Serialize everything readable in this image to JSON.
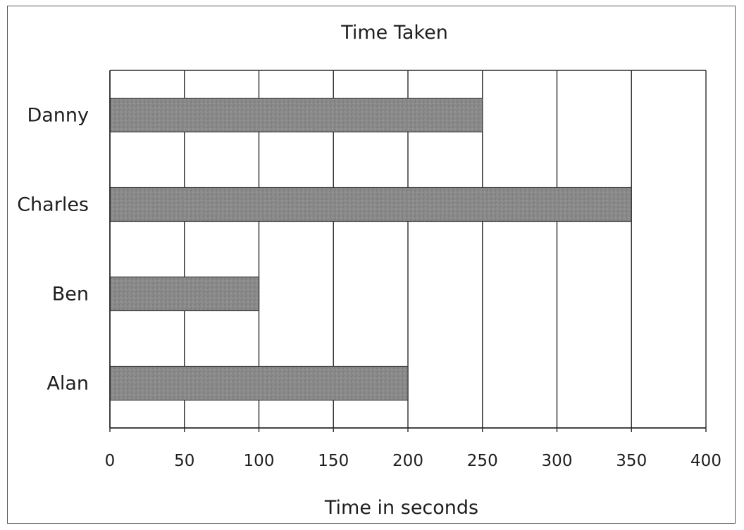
{
  "chart_data": {
    "type": "bar",
    "orientation": "horizontal",
    "title": "Time Taken",
    "xlabel": "Time in seconds",
    "ylabel": "",
    "categories": [
      "Alan",
      "Ben",
      "Charles",
      "Danny"
    ],
    "values": [
      200,
      100,
      350,
      250
    ],
    "xlim": [
      0,
      400
    ],
    "x_ticks": [
      "0",
      "50",
      "100",
      "150",
      "200",
      "250",
      "300",
      "350",
      "400"
    ],
    "grid": "vertical",
    "legend": "none",
    "bar_color": "#8a8a8a",
    "grid_color": "#2a2a2a"
  }
}
